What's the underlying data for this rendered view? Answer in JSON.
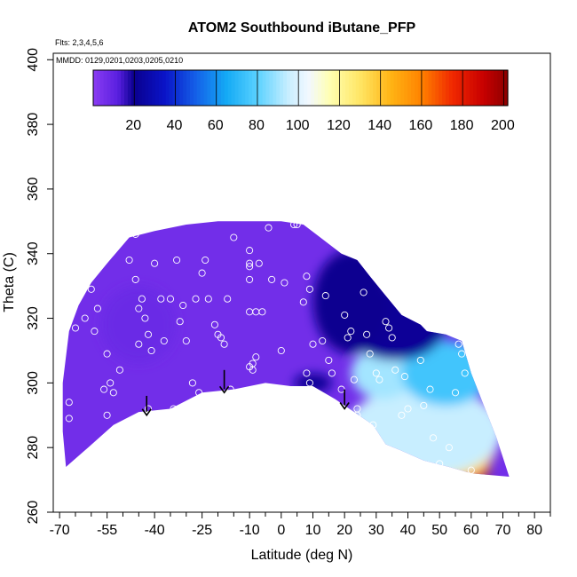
{
  "chart_data": {
    "type": "heatmap",
    "title": "ATOM2 Southbound iButane_PFP",
    "annotations": [
      "Flts: 2,3,4,5,6",
      "MMDD: 0129,0201,0203,0205,0210"
    ],
    "xlabel": "Latitude (deg N)",
    "ylabel": "Theta (C)",
    "xlim": [
      -72,
      85
    ],
    "ylim": [
      260,
      402
    ],
    "x_major_ticks": [
      -70,
      -55,
      -40,
      -25,
      -10,
      0,
      10,
      20,
      30,
      40,
      50,
      60,
      70,
      80
    ],
    "x_minor_ticks": [
      -65,
      -60,
      -50,
      -45,
      -35,
      -30,
      -20,
      -15,
      -5,
      5,
      15,
      25,
      35,
      45,
      55,
      65,
      75,
      85
    ],
    "y_ticks": [
      260,
      280,
      300,
      320,
      340,
      360,
      380,
      400
    ],
    "colorbar": {
      "min": 0,
      "max": 202,
      "ticks": [
        20,
        40,
        60,
        80,
        100,
        120,
        140,
        160,
        180,
        200
      ],
      "stops": [
        {
          "v": 0,
          "c": "#8A3CF2"
        },
        {
          "v": 12,
          "c": "#5A1FE0"
        },
        {
          "v": 20,
          "c": "#0A0090"
        },
        {
          "v": 35,
          "c": "#0A14C8"
        },
        {
          "v": 50,
          "c": "#1460E8"
        },
        {
          "v": 65,
          "c": "#14AAF5"
        },
        {
          "v": 80,
          "c": "#5AD2FF"
        },
        {
          "v": 95,
          "c": "#C8EEFF"
        },
        {
          "v": 105,
          "c": "#F2F8FF"
        },
        {
          "v": 115,
          "c": "#FFFFB4"
        },
        {
          "v": 130,
          "c": "#FFE664"
        },
        {
          "v": 145,
          "c": "#FFB414"
        },
        {
          "v": 160,
          "c": "#FF8200"
        },
        {
          "v": 175,
          "c": "#F02800"
        },
        {
          "v": 190,
          "c": "#C80000"
        },
        {
          "v": 202,
          "c": "#8C0000"
        }
      ]
    },
    "field_outline": [
      [
        -68,
        274
      ],
      [
        -61,
        280
      ],
      [
        -53,
        287
      ],
      [
        -45,
        291
      ],
      [
        -35,
        292
      ],
      [
        -25,
        297
      ],
      [
        -15,
        298
      ],
      [
        -5,
        300
      ],
      [
        3,
        299
      ],
      [
        10,
        299
      ],
      [
        17,
        295
      ],
      [
        23,
        291
      ],
      [
        29,
        287
      ],
      [
        33,
        281
      ],
      [
        38,
        279
      ],
      [
        45,
        276
      ],
      [
        53,
        274
      ],
      [
        60,
        272
      ],
      [
        72,
        271
      ],
      [
        68,
        283
      ],
      [
        60,
        303
      ],
      [
        57,
        313
      ],
      [
        52,
        315
      ],
      [
        46,
        316
      ],
      [
        44,
        318
      ],
      [
        38,
        321
      ],
      [
        33,
        327
      ],
      [
        28,
        333
      ],
      [
        24,
        338
      ],
      [
        19,
        340
      ],
      [
        15,
        343
      ],
      [
        11,
        346
      ],
      [
        7,
        349
      ],
      [
        0,
        350
      ],
      [
        -10,
        350
      ],
      [
        -20,
        350
      ],
      [
        -30,
        349
      ],
      [
        -40,
        347
      ],
      [
        -48,
        345
      ],
      [
        -55,
        337
      ],
      [
        -60,
        331
      ],
      [
        -64,
        324
      ],
      [
        -67,
        316
      ],
      [
        -69,
        300
      ],
      [
        -69,
        285
      ]
    ],
    "field_patches": [
      {
        "center": [
          58,
          273
        ],
        "radius": [
          8,
          4
        ],
        "value": 195
      },
      {
        "center": [
          54,
          276
        ],
        "radius": [
          12,
          7
        ],
        "value": 165
      },
      {
        "center": [
          50,
          280
        ],
        "radius": [
          18,
          10
        ],
        "value": 130
      },
      {
        "center": [
          45,
          285
        ],
        "radius": [
          25,
          14
        ],
        "value": 95
      },
      {
        "center": [
          28,
          305
        ],
        "radius": [
          3,
          2
        ],
        "value": 175
      },
      {
        "center": [
          32,
          303
        ],
        "radius": [
          10,
          8
        ],
        "value": 90
      },
      {
        "center": [
          52,
          303
        ],
        "radius": [
          14,
          10
        ],
        "value": 75
      },
      {
        "center": [
          36,
          318
        ],
        "radius": [
          16,
          11
        ],
        "value": 22
      },
      {
        "center": [
          22,
          325
        ],
        "radius": [
          12,
          16
        ],
        "value": 20
      },
      {
        "center": [
          10,
          300
        ],
        "radius": [
          6,
          3
        ],
        "value": 22
      },
      {
        "center": [
          -45,
          318
        ],
        "radius": [
          12,
          12
        ],
        "value": 8
      }
    ],
    "samples": [
      [
        -67,
        289
      ],
      [
        -67,
        294
      ],
      [
        -65,
        317
      ],
      [
        -62,
        320
      ],
      [
        -60,
        329
      ],
      [
        -59,
        316
      ],
      [
        -58,
        323
      ],
      [
        -56,
        298
      ],
      [
        -55,
        309
      ],
      [
        -55,
        290
      ],
      [
        -54,
        300
      ],
      [
        -53,
        297
      ],
      [
        -53,
        283
      ],
      [
        -51,
        304
      ],
      [
        -48,
        338
      ],
      [
        -46,
        346
      ],
      [
        -46,
        332
      ],
      [
        -45,
        323
      ],
      [
        -45,
        312
      ],
      [
        -44,
        326
      ],
      [
        -43,
        320
      ],
      [
        -42,
        315
      ],
      [
        -42,
        292
      ],
      [
        -41,
        310
      ],
      [
        -40,
        337
      ],
      [
        -38,
        326
      ],
      [
        -37,
        313
      ],
      [
        -35,
        326
      ],
      [
        -34,
        292
      ],
      [
        -33,
        338
      ],
      [
        -32,
        319
      ],
      [
        -31,
        324
      ],
      [
        -30,
        313
      ],
      [
        -28,
        300
      ],
      [
        -27,
        326
      ],
      [
        -26,
        297
      ],
      [
        -25,
        334
      ],
      [
        -24,
        338
      ],
      [
        -23,
        326
      ],
      [
        -21,
        318
      ],
      [
        -20,
        315
      ],
      [
        -19,
        314
      ],
      [
        -18,
        312
      ],
      [
        -17,
        326
      ],
      [
        -16,
        298
      ],
      [
        -15,
        345
      ],
      [
        -10,
        341
      ],
      [
        -10,
        337
      ],
      [
        -10,
        336
      ],
      [
        -10,
        332
      ],
      [
        -10,
        322
      ],
      [
        -10,
        305
      ],
      [
        -9,
        306
      ],
      [
        -9,
        304
      ],
      [
        -8,
        322
      ],
      [
        -8,
        308
      ],
      [
        -7,
        337
      ],
      [
        -6,
        322
      ],
      [
        -4,
        348
      ],
      [
        -3,
        332
      ],
      [
        0,
        310
      ],
      [
        1,
        331
      ],
      [
        4,
        349
      ],
      [
        5,
        349
      ],
      [
        7,
        325
      ],
      [
        8,
        333
      ],
      [
        8,
        303
      ],
      [
        9,
        329
      ],
      [
        9,
        300
      ],
      [
        10,
        312
      ],
      [
        11,
        296
      ],
      [
        13,
        313
      ],
      [
        14,
        327
      ],
      [
        15,
        307
      ],
      [
        16,
        303
      ],
      [
        19,
        298
      ],
      [
        20,
        321
      ],
      [
        21,
        314
      ],
      [
        22,
        316
      ],
      [
        23,
        301
      ],
      [
        24,
        292
      ],
      [
        24,
        290
      ],
      [
        26,
        328
      ],
      [
        27,
        315
      ],
      [
        28,
        309
      ],
      [
        29,
        287
      ],
      [
        30,
        303
      ],
      [
        31,
        301
      ],
      [
        33,
        319
      ],
      [
        34,
        317
      ],
      [
        35,
        314
      ],
      [
        36,
        304
      ],
      [
        38,
        290
      ],
      [
        39,
        302
      ],
      [
        40,
        292
      ],
      [
        44,
        307
      ],
      [
        45,
        293
      ],
      [
        47,
        298
      ],
      [
        48,
        283
      ],
      [
        50,
        275
      ],
      [
        53,
        280
      ],
      [
        55,
        297
      ],
      [
        56,
        312
      ],
      [
        57,
        309
      ],
      [
        58,
        303
      ],
      [
        60,
        273
      ],
      [
        62,
        270
      ]
    ],
    "arrows": [
      {
        "x": -42.5,
        "y_from": 296,
        "y_to": 290
      },
      {
        "x": -18,
        "y_from": 304,
        "y_to": 297
      },
      {
        "x": 20,
        "y_from": 298,
        "y_to": 292
      }
    ]
  }
}
